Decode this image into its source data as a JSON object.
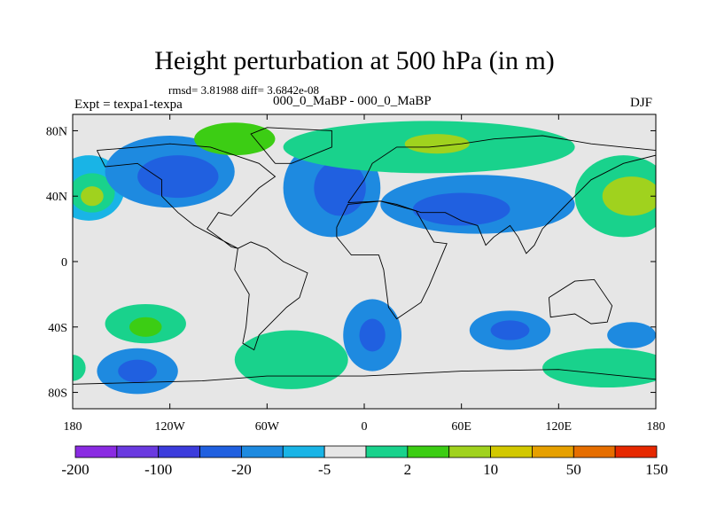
{
  "header": {
    "title": "Height perturbation at 500 hPa (in m)",
    "stats": "rmsd= 3.81988 diff= 3.6842e-08",
    "expt": "Expt = texpa1-texpa",
    "case": "000_0_MaBP - 000_0_MaBP",
    "season": "DJF"
  },
  "chart_data": {
    "type": "heatmap",
    "title": "Height perturbation at 500 hPa (in m)",
    "xlabel": "",
    "ylabel": "",
    "xlim": [
      -180,
      180
    ],
    "ylim": [
      -90,
      90
    ],
    "x_ticks": [
      {
        "value": -180,
        "label": "180"
      },
      {
        "value": -120,
        "label": "120W"
      },
      {
        "value": -60,
        "label": "60W"
      },
      {
        "value": 0,
        "label": "0"
      },
      {
        "value": 60,
        "label": "60E"
      },
      {
        "value": 120,
        "label": "120E"
      },
      {
        "value": 180,
        "label": "180"
      }
    ],
    "y_ticks": [
      {
        "value": 80,
        "label": "80N"
      },
      {
        "value": 40,
        "label": "40N"
      },
      {
        "value": 0,
        "label": "0"
      },
      {
        "value": -40,
        "label": "40S"
      },
      {
        "value": -80,
        "label": "80S"
      }
    ],
    "colorbar": {
      "colors": [
        "#8a2be2",
        "#6a3ae0",
        "#3c3cdc",
        "#2060e0",
        "#1e8ae0",
        "#19b4e6",
        "#e6e6e6",
        "#19d28c",
        "#3ccd14",
        "#a0d21e",
        "#d2c800",
        "#e6a000",
        "#e66e00",
        "#e62800"
      ],
      "labels": [
        {
          "after_index": 0,
          "text": "-200"
        },
        {
          "after_index": 2,
          "text": "-100"
        },
        {
          "after_index": 4,
          "text": "-20"
        },
        {
          "after_index": 6,
          "text": "-5"
        },
        {
          "after_index": 8,
          "text": "2"
        },
        {
          "after_index": 10,
          "text": "10"
        },
        {
          "after_index": 12,
          "text": "50"
        },
        {
          "after_index": 14,
          "text": "150"
        }
      ]
    },
    "background_color": "#e6e6e6",
    "regions": [
      {
        "name": "north-pacific-east",
        "lon": -170,
        "lat": 45,
        "rlon": 22,
        "rlat": 20,
        "level": "light-blue"
      },
      {
        "name": "north-pacific-east",
        "lon": -168,
        "lat": 42,
        "rlon": 14,
        "rlat": 12,
        "level": "light-green"
      },
      {
        "name": "north-pacific-east",
        "lon": -168,
        "lat": 40,
        "rlon": 7,
        "rlat": 6,
        "level": "yellow-green"
      },
      {
        "name": "north-america",
        "lon": -120,
        "lat": 55,
        "rlon": 40,
        "rlat": 22,
        "level": "mid-blue"
      },
      {
        "name": "north-america-core",
        "lon": -115,
        "lat": 52,
        "rlon": 25,
        "rlat": 13,
        "level": "blue"
      },
      {
        "name": "north-atlantic",
        "lon": -20,
        "lat": 45,
        "rlon": 30,
        "rlat": 30,
        "level": "mid-blue"
      },
      {
        "name": "north-atlantic-core",
        "lon": -15,
        "lat": 45,
        "rlon": 16,
        "rlat": 17,
        "level": "blue"
      },
      {
        "name": "arctic-band",
        "lon": 40,
        "lat": 70,
        "rlon": 90,
        "rlat": 16,
        "level": "light-green"
      },
      {
        "name": "arctic-band-core",
        "lon": 45,
        "lat": 72,
        "rlon": 20,
        "rlat": 6,
        "level": "yellow-green"
      },
      {
        "name": "greenland",
        "lon": -80,
        "lat": 75,
        "rlon": 25,
        "rlat": 10,
        "level": "green"
      },
      {
        "name": "asia",
        "lon": 70,
        "lat": 35,
        "rlon": 60,
        "rlat": 18,
        "level": "mid-blue"
      },
      {
        "name": "asia-core",
        "lon": 60,
        "lat": 32,
        "rlon": 30,
        "rlat": 10,
        "level": "blue"
      },
      {
        "name": "east-asia",
        "lon": 160,
        "lat": 40,
        "rlon": 30,
        "rlat": 25,
        "level": "light-green"
      },
      {
        "name": "east-asia-core",
        "lon": 165,
        "lat": 40,
        "rlon": 18,
        "rlat": 12,
        "level": "yellow-green"
      },
      {
        "name": "south-pacific",
        "lon": -135,
        "lat": -38,
        "rlon": 25,
        "rlat": 12,
        "level": "light-green"
      },
      {
        "name": "south-pacific-core",
        "lon": -135,
        "lat": -40,
        "rlon": 10,
        "rlat": 6,
        "level": "green"
      },
      {
        "name": "south-pacific-2",
        "lon": -140,
        "lat": -67,
        "rlon": 25,
        "rlat": 14,
        "level": "mid-blue"
      },
      {
        "name": "south-pacific-2-core",
        "lon": -140,
        "lat": -67,
        "rlon": 12,
        "rlat": 7,
        "level": "blue"
      },
      {
        "name": "south-atlantic",
        "lon": 5,
        "lat": -45,
        "rlon": 18,
        "rlat": 22,
        "level": "mid-blue"
      },
      {
        "name": "south-atlantic-core",
        "lon": 5,
        "lat": -45,
        "rlon": 8,
        "rlat": 10,
        "level": "blue"
      },
      {
        "name": "south-atlantic-band",
        "lon": -45,
        "lat": -60,
        "rlon": 35,
        "rlat": 18,
        "level": "light-green"
      },
      {
        "name": "indian-ocean",
        "lon": 90,
        "lat": -42,
        "rlon": 25,
        "rlat": 12,
        "level": "mid-blue"
      },
      {
        "name": "indian-ocean-core",
        "lon": 90,
        "lat": -42,
        "rlon": 12,
        "rlat": 6,
        "level": "blue"
      },
      {
        "name": "southern-pacific-east",
        "lon": 150,
        "lat": -65,
        "rlon": 40,
        "rlat": 12,
        "level": "light-green"
      },
      {
        "name": "southern-pacific-east-2",
        "lon": 165,
        "lat": -45,
        "rlon": 15,
        "rlat": 8,
        "level": "mid-blue"
      },
      {
        "name": "south-west-edge",
        "lon": -180,
        "lat": -65,
        "rlon": 8,
        "rlat": 8,
        "level": "light-green"
      }
    ]
  }
}
